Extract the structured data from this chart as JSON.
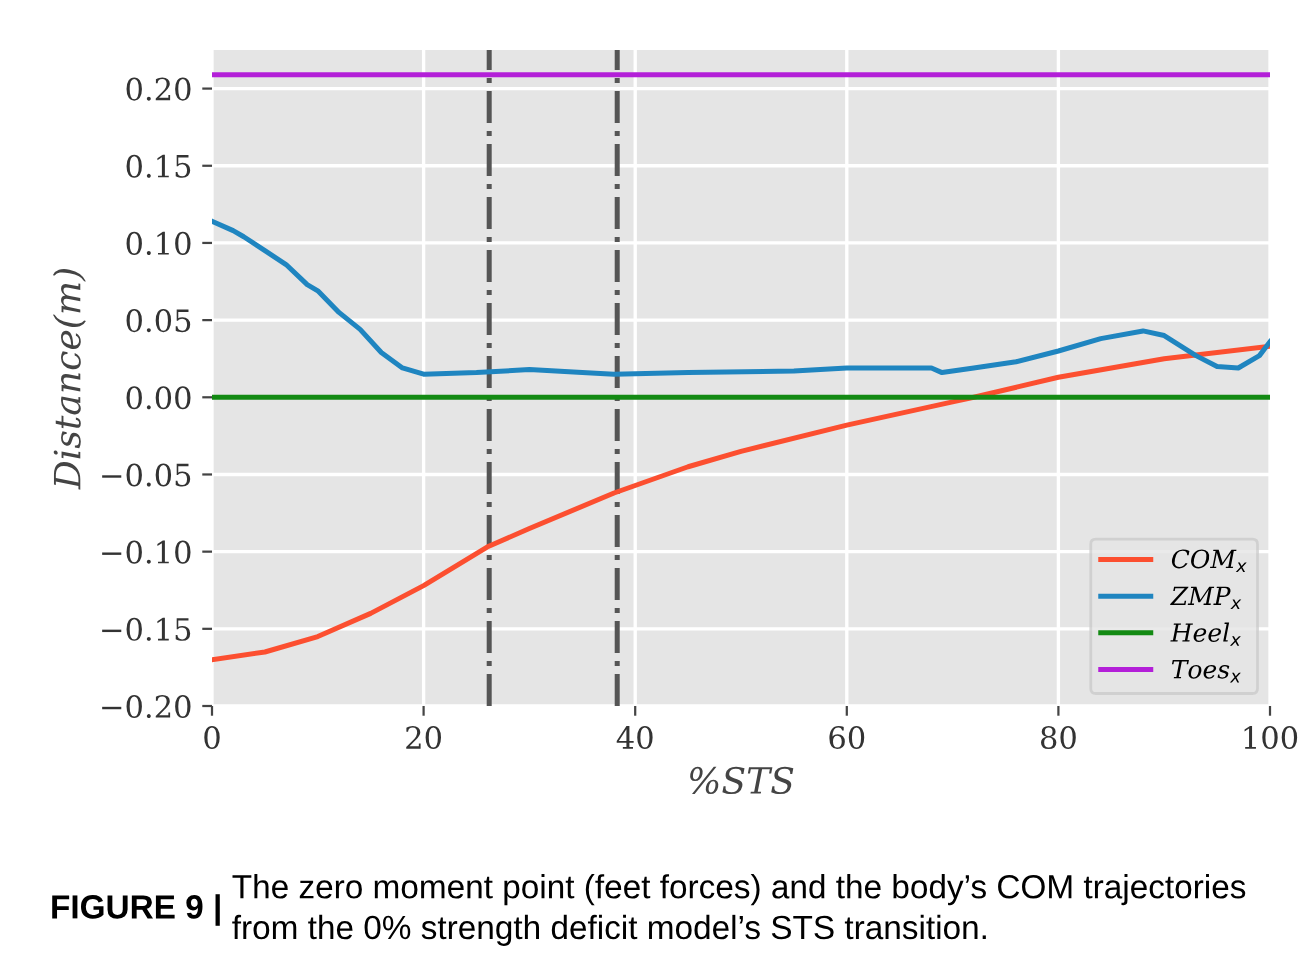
{
  "chart_data": {
    "type": "line",
    "xlabel": "%STS",
    "ylabel": "Distance(m)",
    "xlim": [
      0,
      100
    ],
    "ylim": [
      -0.2,
      0.225
    ],
    "xticks": [
      0,
      20,
      40,
      60,
      80,
      100
    ],
    "yticks": [
      {
        "value": -0.2,
        "label": "−0.20"
      },
      {
        "value": -0.15,
        "label": "−0.15"
      },
      {
        "value": -0.1,
        "label": "−0.10"
      },
      {
        "value": -0.05,
        "label": "−0.05"
      },
      {
        "value": 0,
        "label": "0.00"
      },
      {
        "value": 0.05,
        "label": "0.05"
      },
      {
        "value": 0.1,
        "label": "0.10"
      },
      {
        "value": 0.15,
        "label": "0.15"
      },
      {
        "value": 0.2,
        "label": "0.20"
      }
    ],
    "grid": true,
    "legend": "bottom right",
    "line_style": "solid",
    "marker": "none",
    "series": [
      {
        "name": "COM$_{x}$",
        "color": "#fc4f30",
        "x": [
          0,
          5,
          10,
          15,
          20,
          26,
          30,
          38,
          45,
          50,
          60,
          70,
          72,
          80,
          90,
          100
        ],
        "values": [
          -0.17,
          -0.165,
          -0.155,
          -0.14,
          -0.122,
          -0.097,
          -0.085,
          -0.062,
          -0.045,
          -0.035,
          -0.018,
          -0.003,
          0.0,
          0.013,
          0.025,
          0.033
        ]
      },
      {
        "name": "ZMP$_{x}$",
        "color": "#1f85c0",
        "x": [
          0,
          2,
          3,
          5,
          7,
          9,
          10,
          12,
          14,
          16,
          18,
          20,
          25,
          30,
          35,
          38,
          45,
          55,
          60,
          68,
          69,
          72,
          76,
          80,
          84,
          88,
          90,
          93,
          95,
          97,
          99,
          100
        ],
        "values": [
          0.114,
          0.108,
          0.104,
          0.095,
          0.086,
          0.073,
          0.069,
          0.055,
          0.044,
          0.029,
          0.019,
          0.015,
          0.016,
          0.018,
          0.016,
          0.015,
          0.016,
          0.017,
          0.019,
          0.019,
          0.016,
          0.019,
          0.023,
          0.03,
          0.038,
          0.043,
          0.04,
          0.027,
          0.02,
          0.019,
          0.027,
          0.036
        ]
      },
      {
        "name": "Heel$_{x}$",
        "color": "#138a13",
        "x": [
          0,
          100
        ],
        "values": [
          0,
          0
        ]
      },
      {
        "name": "Toes$_{x}$",
        "color": "#b31fd8",
        "x": [
          0,
          100
        ],
        "values": [
          0.209,
          0.209
        ]
      }
    ],
    "ref_lines": [
      {
        "axis": "x",
        "value": 26.2,
        "color": "#555555",
        "line_style": "dashdot"
      },
      {
        "axis": "x",
        "value": 38.3,
        "color": "#555555",
        "line_style": "dashdot"
      }
    ],
    "annotations": [
      "FIGURE 9 |",
      "The zero moment point (feet forces) and the body’s COM trajectories from the 0% strength deficit model’s STS transition."
    ]
  }
}
